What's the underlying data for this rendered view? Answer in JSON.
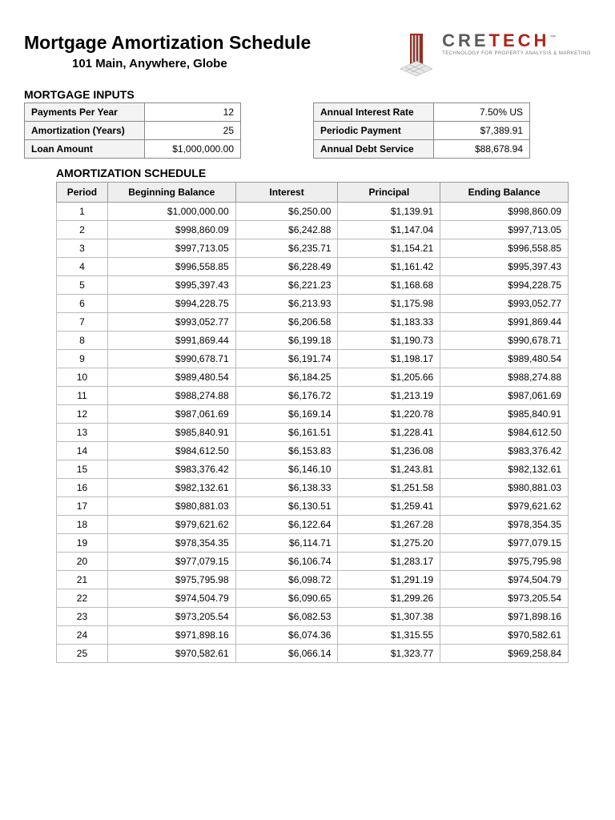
{
  "header": {
    "title": "Mortgage Amortization Schedule",
    "subtitle": "101 Main, Anywhere, Globe",
    "brand_left": "CRE",
    "brand_right": "TECH",
    "brand_color_left": "#5a5a5a",
    "brand_color_right": "#b02418",
    "tagline": "TECHNOLOGY FOR PROPERTY ANALYSIS & MARKETING"
  },
  "inputs_heading": "MORTGAGE INPUTS",
  "inputs_left": [
    {
      "label": "Payments Per Year",
      "value": "12"
    },
    {
      "label": "Amortization (Years)",
      "value": "25"
    },
    {
      "label": "Loan Amount",
      "value": "$1,000,000.00"
    }
  ],
  "inputs_right": [
    {
      "label": "Annual Interest Rate",
      "value": "7.50% US"
    },
    {
      "label": "Periodic Payment",
      "value": "$7,389.91"
    },
    {
      "label": "Annual Debt Service",
      "value": "$88,678.94"
    }
  ],
  "schedule_heading": "AMORTIZATION SCHEDULE",
  "schedule_columns": [
    "Period",
    "Beginning Balance",
    "Interest",
    "Principal",
    "Ending Balance"
  ],
  "schedule_rows": [
    [
      "1",
      "$1,000,000.00",
      "$6,250.00",
      "$1,139.91",
      "$998,860.09"
    ],
    [
      "2",
      "$998,860.09",
      "$6,242.88",
      "$1,147.04",
      "$997,713.05"
    ],
    [
      "3",
      "$997,713.05",
      "$6,235.71",
      "$1,154.21",
      "$996,558.85"
    ],
    [
      "4",
      "$996,558.85",
      "$6,228.49",
      "$1,161.42",
      "$995,397.43"
    ],
    [
      "5",
      "$995,397.43",
      "$6,221.23",
      "$1,168.68",
      "$994,228.75"
    ],
    [
      "6",
      "$994,228.75",
      "$6,213.93",
      "$1,175.98",
      "$993,052.77"
    ],
    [
      "7",
      "$993,052.77",
      "$6,206.58",
      "$1,183.33",
      "$991,869.44"
    ],
    [
      "8",
      "$991,869.44",
      "$6,199.18",
      "$1,190.73",
      "$990,678.71"
    ],
    [
      "9",
      "$990,678.71",
      "$6,191.74",
      "$1,198.17",
      "$989,480.54"
    ],
    [
      "10",
      "$989,480.54",
      "$6,184.25",
      "$1,205.66",
      "$988,274.88"
    ],
    [
      "11",
      "$988,274.88",
      "$6,176.72",
      "$1,213.19",
      "$987,061.69"
    ],
    [
      "12",
      "$987,061.69",
      "$6,169.14",
      "$1,220.78",
      "$985,840.91"
    ],
    [
      "13",
      "$985,840.91",
      "$6,161.51",
      "$1,228.41",
      "$984,612.50"
    ],
    [
      "14",
      "$984,612.50",
      "$6,153.83",
      "$1,236.08",
      "$983,376.42"
    ],
    [
      "15",
      "$983,376.42",
      "$6,146.10",
      "$1,243.81",
      "$982,132.61"
    ],
    [
      "16",
      "$982,132.61",
      "$6,138.33",
      "$1,251.58",
      "$980,881.03"
    ],
    [
      "17",
      "$980,881.03",
      "$6,130.51",
      "$1,259.41",
      "$979,621.62"
    ],
    [
      "18",
      "$979,621.62",
      "$6,122.64",
      "$1,267.28",
      "$978,354.35"
    ],
    [
      "19",
      "$978,354.35",
      "$6,114.71",
      "$1,275.20",
      "$977,079.15"
    ],
    [
      "20",
      "$977,079.15",
      "$6,106.74",
      "$1,283.17",
      "$975,795.98"
    ],
    [
      "21",
      "$975,795.98",
      "$6,098.72",
      "$1,291.19",
      "$974,504.79"
    ],
    [
      "22",
      "$974,504.79",
      "$6,090.65",
      "$1,299.26",
      "$973,205.54"
    ],
    [
      "23",
      "$973,205.54",
      "$6,082.53",
      "$1,307.38",
      "$971,898.16"
    ],
    [
      "24",
      "$971,898.16",
      "$6,074.36",
      "$1,315.55",
      "$970,582.61"
    ],
    [
      "25",
      "$970,582.61",
      "$6,066.14",
      "$1,323.77",
      "$969,258.84"
    ]
  ],
  "style": {
    "title_fontsize": 23,
    "subtitle_fontsize": 15,
    "section_heading_fontsize": 14,
    "table_fontsize": 12,
    "header_bg": "#eeeeee",
    "input_lbl_bg": "#f3f3f3",
    "border_color": "#999999",
    "row_border_color": "#bbbbbb",
    "background": "#ffffff",
    "text_color": "#000000"
  }
}
